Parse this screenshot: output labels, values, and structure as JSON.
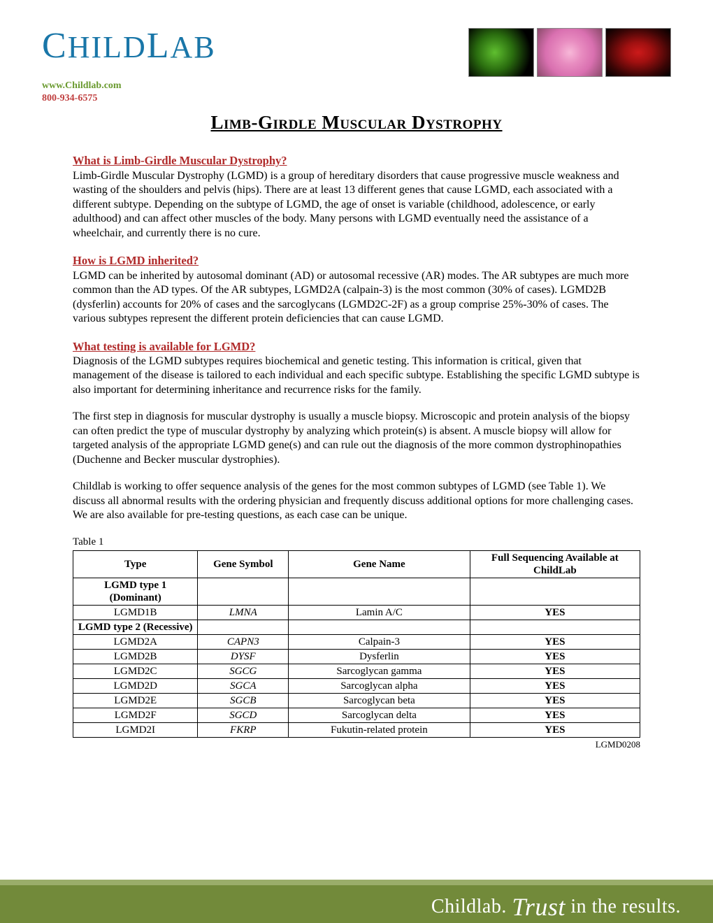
{
  "header": {
    "logo_text": "CHILDLAB",
    "website": "www.Childlab.com",
    "phone": "800-934-6575"
  },
  "title": "Limb-Girdle Muscular Dystrophy",
  "sections": [
    {
      "heading": "What is Limb-Girdle Muscular Dystrophy?",
      "body": "Limb-Girdle Muscular Dystrophy (LGMD) is a group of hereditary disorders that cause progressive muscle weakness and wasting of the shoulders and pelvis (hips).  There are at least 13 different genes that cause LGMD, each associated with a different subtype.  Depending on the subtype of LGMD, the age of onset is variable (childhood, adolescence, or early adulthood) and can affect other muscles of the body.  Many persons with LGMD eventually need the assistance of a wheelchair, and currently there is no cure."
    },
    {
      "heading": "How is LGMD inherited?",
      "body": "LGMD can be inherited by autosomal dominant (AD) or autosomal recessive (AR) modes.  The AR subtypes are much more common than the AD types.  Of the AR subtypes, LGMD2A (calpain-3) is the most common (30% of cases).  LGMD2B (dysferlin) accounts for 20% of cases and the sarcoglycans (LGMD2C-2F) as a group comprise 25%-30% of cases.  The various subtypes represent the different protein deficiencies that can cause LGMD."
    },
    {
      "heading": "What testing is available for LGMD?",
      "body": "Diagnosis of the LGMD subtypes requires biochemical and genetic testing.  This information is critical, given that management of the disease is tailored to each individual and each specific subtype.  Establishing the specific LGMD subtype is also important for determining inheritance and recurrence risks for the family."
    }
  ],
  "extra_paragraphs": [
    "The first step in diagnosis for muscular dystrophy is usually a muscle biopsy.  Microscopic and protein analysis of the biopsy can often predict the type of muscular dystrophy by analyzing which protein(s) is absent.  A muscle biopsy will allow for targeted analysis of the appropriate LGMD gene(s) and can rule out the diagnosis of the more common dystrophinopathies (Duchenne and Becker muscular dystrophies).",
    "Childlab is working to offer sequence analysis of the genes for the most common subtypes of LGMD (see Table 1).   We discuss all abnormal results with the ordering physician and frequently discuss additional options for more challenging cases.  We are also available for pre-testing questions, as each case can be unique."
  ],
  "table": {
    "label": "Table 1",
    "columns": [
      "Type",
      "Gene Symbol",
      "Gene Name",
      "Full Sequencing Available at ChildLab"
    ],
    "groups": [
      {
        "title": "LGMD type 1 (Dominant)",
        "rows": [
          {
            "type": "LGMD1B",
            "symbol": "LMNA",
            "name": "Lamin A/C",
            "avail": "YES"
          }
        ]
      },
      {
        "title": "LGMD type 2 (Recessive)",
        "rows": [
          {
            "type": "LGMD2A",
            "symbol": "CAPN3",
            "name": "Calpain-3",
            "avail": "YES"
          },
          {
            "type": "LGMD2B",
            "symbol": "DYSF",
            "name": "Dysferlin",
            "avail": "YES"
          },
          {
            "type": "LGMD2C",
            "symbol": "SGCG",
            "name": "Sarcoglycan gamma",
            "avail": "YES"
          },
          {
            "type": "LGMD2D",
            "symbol": "SGCA",
            "name": "Sarcoglycan alpha",
            "avail": "YES"
          },
          {
            "type": "LGMD2E",
            "symbol": "SGCB",
            "name": "Sarcoglycan beta",
            "avail": "YES"
          },
          {
            "type": "LGMD2F",
            "symbol": "SGCD",
            "name": "Sarcoglycan delta",
            "avail": "YES"
          },
          {
            "type": "LGMD2I",
            "symbol": "FKRP",
            "name": "Fukutin-related protein",
            "avail": "YES"
          }
        ]
      }
    ]
  },
  "doc_code": "LGMD0208",
  "footer": {
    "prefix": "Childlab. ",
    "emph": "Trust",
    "suffix": " in the results."
  },
  "colors": {
    "logo": "#1976a8",
    "website": "#6a9a2f",
    "phone": "#c04040",
    "heading": "#b02a2a",
    "footer_bg": "#728a3a",
    "footer_border": "#9aad6a",
    "footer_text": "#ffffff",
    "text": "#000000",
    "background": "#ffffff"
  }
}
